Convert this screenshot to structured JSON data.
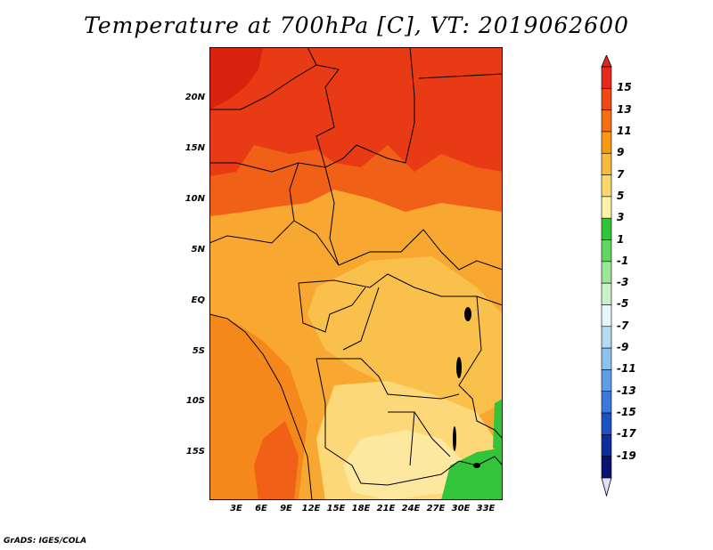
{
  "title": "Temperature at 700hPa [C], VT: 2019062600",
  "credit": "GrADS: IGES/COLA",
  "lat_labels": [
    "20N",
    "15N",
    "10N",
    "5N",
    "EQ",
    "5S",
    "10S",
    "15S"
  ],
  "lon_labels": [
    "3E",
    "6E",
    "9E",
    "12E",
    "15E",
    "18E",
    "21E",
    "24E",
    "27E",
    "30E",
    "33E"
  ],
  "colorbar": {
    "levels": [
      "15",
      "13",
      "11",
      "9",
      "7",
      "5",
      "3",
      "1",
      "-1",
      "-3",
      "-5",
      "-7",
      "-9",
      "-11",
      "-13",
      "-15",
      "-17",
      "-19"
    ],
    "colors": [
      "#e8281c",
      "#f04a14",
      "#f56e10",
      "#f79a10",
      "#f9b93a",
      "#fcd86c",
      "#fdf2a6",
      "#30c43a",
      "#60d860",
      "#9ae896",
      "#caf2c6",
      "#e6f6fa",
      "#b6dcf4",
      "#8ec2ee",
      "#5e9ee6",
      "#3a7ae0",
      "#1c52c8",
      "#0e2c9e",
      "#0a1470"
    ],
    "over_color": "#e0281c",
    "under_color": "#e0e0f8"
  },
  "map_colors": {
    "red_dark": "#d8220e",
    "red": "#e83a14",
    "orange_red": "#f06016",
    "orange": "#f5881a",
    "orange_light": "#f8a830",
    "amber": "#f9c04c",
    "yellow": "#fcd878",
    "pale_yellow": "#fde8a0",
    "green": "#34c43c"
  }
}
